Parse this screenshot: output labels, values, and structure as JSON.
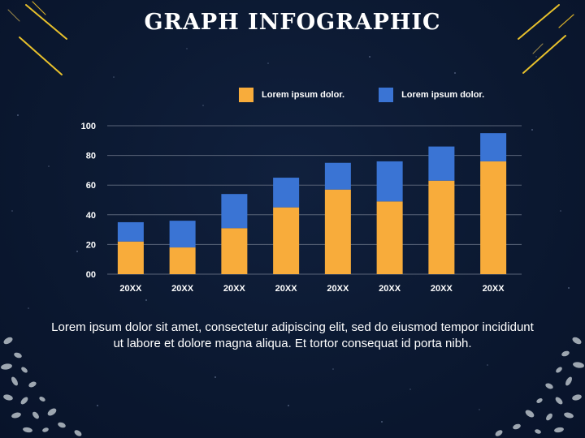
{
  "slide": {
    "title": "GRAPH INFOGRAPHIC"
  },
  "colors": {
    "background": "#0b1830",
    "series_1": "#f8ac3b",
    "series_2": "#3a74d4",
    "accent_lines": "#e8c12c",
    "grid": "#5a6478"
  },
  "legend": [
    {
      "label": "Lorem ipsum dolor.",
      "color": "#f8ac3b"
    },
    {
      "label": "Lorem ipsum dolor.",
      "color": "#3a74d4"
    }
  ],
  "chart_data": {
    "type": "bar",
    "stacked": true,
    "categories": [
      "20XX",
      "20XX",
      "20XX",
      "20XX",
      "20XX",
      "20XX",
      "20XX",
      "20XX"
    ],
    "series": [
      {
        "name": "Lorem ipsum dolor.",
        "values": [
          22,
          18,
          31,
          45,
          57,
          49,
          63,
          76
        ],
        "color": "#f8ac3b"
      },
      {
        "name": "Lorem ipsum dolor.",
        "values": [
          13,
          18,
          23,
          20,
          18,
          27,
          23,
          19
        ],
        "color": "#3a74d4"
      }
    ],
    "ylim": [
      0,
      100
    ],
    "yticks": [
      "00",
      "20",
      "40",
      "60",
      "80",
      "100"
    ],
    "grid": true,
    "legend_position": "top-right"
  },
  "caption": "Lorem ipsum dolor sit amet, consectetur adipiscing elit, sed do eiusmod tempor incididunt ut labore et dolore magna aliqua. Et tortor consequat id porta nibh."
}
